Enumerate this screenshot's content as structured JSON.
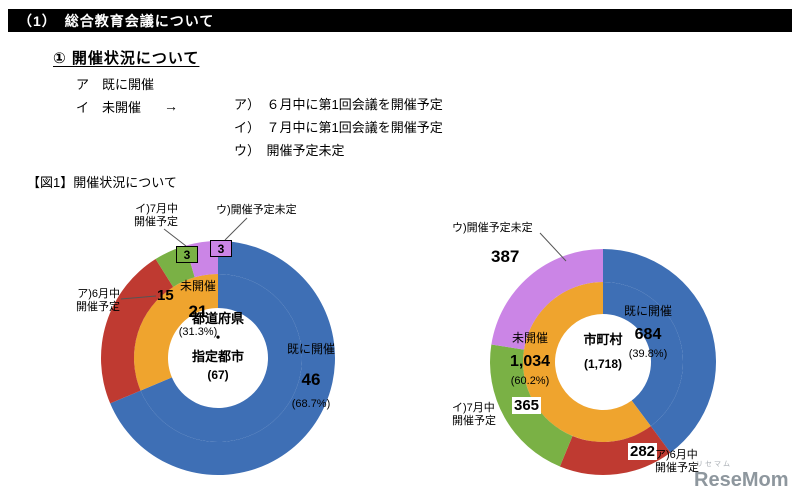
{
  "page": {
    "header_title": "（1）　総合教育会議について",
    "section_title": "① 開催状況について",
    "item_already": "ア　既に開催",
    "item_not_yet": "イ　未開催",
    "arrow": "→",
    "sub_items": [
      "ア）　６月中に第1回会議を開催予定",
      "イ）　７月中に第1回会議を開催予定",
      "ウ）　開催予定未定"
    ],
    "figure_caption": "【図1】開催状況について"
  },
  "chart_data": [
    {
      "type": "pie",
      "subtype": "double_donut",
      "title": "都道府県・指定都市",
      "center_lines": [
        "都道府県",
        "・",
        "指定都市",
        "(67)"
      ],
      "total": 67,
      "inner_ring": [
        {
          "label": "既に開催",
          "value": 46,
          "display": "46",
          "pct": "(68.7%)",
          "color": "#3e6fb5"
        },
        {
          "label": "未開催",
          "value": 21,
          "display": "21",
          "pct": "(31.3%)",
          "color": "#efa42e"
        }
      ],
      "outer_ring": [
        {
          "label": "既に開催",
          "value": 46,
          "display": "46",
          "color": "#3e6fb5"
        },
        {
          "label": "ア)6月中開催予定",
          "value": 15,
          "display": "15",
          "color": "#bf3a31"
        },
        {
          "label": "イ)7月中開催予定",
          "value": 3,
          "display": "3",
          "color": "#7ab145"
        },
        {
          "label": "ウ)開催予定未定",
          "value": 3,
          "display": "3",
          "color": "#cb85e6"
        }
      ],
      "callouts": {
        "june": [
          "ア)6月中",
          "開催予定"
        ],
        "july": [
          "イ)7月中",
          "開催予定"
        ],
        "undecided": [
          "ウ)開催予定未定"
        ]
      }
    },
    {
      "type": "pie",
      "subtype": "double_donut",
      "title": "市町村",
      "center_lines": [
        "市町村",
        "(1,718)"
      ],
      "total": 1718,
      "inner_ring": [
        {
          "label": "既に開催",
          "value": 684,
          "display": "684",
          "pct": "(39.8%)",
          "color": "#3e6fb5"
        },
        {
          "label": "未開催",
          "value": 1034,
          "display": "1,034",
          "pct": "(60.2%)",
          "color": "#efa42e"
        }
      ],
      "outer_ring": [
        {
          "label": "既に開催",
          "value": 684,
          "display": "684",
          "color": "#3e6fb5"
        },
        {
          "label": "ア)6月中開催予定",
          "value": 282,
          "display": "282",
          "color": "#bf3a31"
        },
        {
          "label": "イ)7月中開催予定",
          "value": 365,
          "display": "365",
          "color": "#7ab145"
        },
        {
          "label": "ウ)開催予定未定",
          "value": 387,
          "display": "387",
          "color": "#cb85e6"
        }
      ],
      "callouts": {
        "june": [
          "ア)6月中",
          "開催予定"
        ],
        "july": [
          "イ)7月中",
          "開催予定"
        ],
        "undecided": [
          "ウ)開催予定未定"
        ]
      }
    }
  ],
  "watermark": {
    "kana": "リセマム",
    "brand": "ReseMom"
  }
}
